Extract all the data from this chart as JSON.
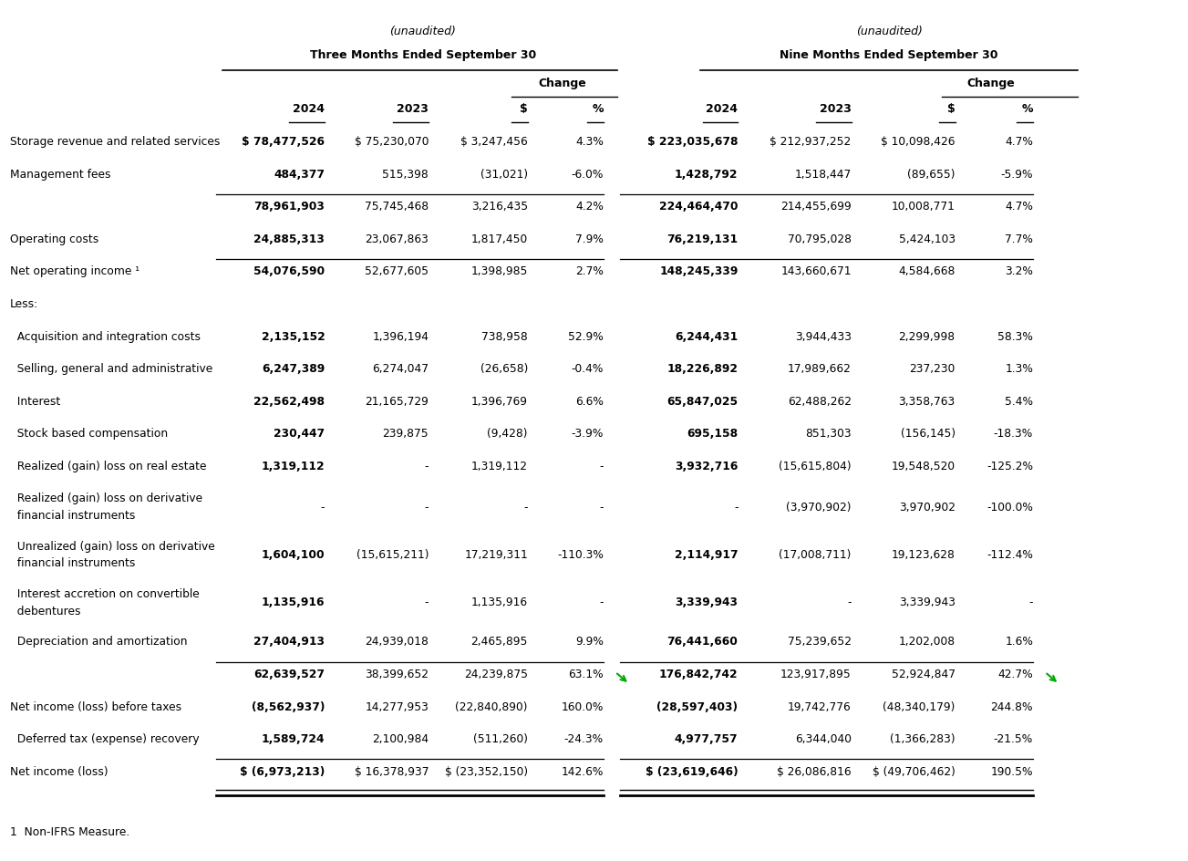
{
  "unaudited_label": "(unaudited)",
  "three_months_header": "Three Months Ended September 30",
  "nine_months_header": "Nine Months Ended September 30",
  "change_label": "Change",
  "footnote": "1  Non-IFRS Measure.",
  "rows": [
    {
      "label": "Storage revenue and related services",
      "indent": 0,
      "q2024": "$ 78,477,526",
      "q2023": "$ 75,230,070",
      "q_chg_s": "$ 3,247,456",
      "q_chg_pct": "4.3%",
      "n2024": "$ 223,035,678",
      "n2023": "$ 212,937,252",
      "n_chg_s": "$ 10,098,426",
      "n_chg_pct": "4.7%",
      "bold_vals": [
        true,
        false,
        false,
        false,
        true,
        false,
        false,
        false
      ],
      "bot_line": false,
      "double_line": false,
      "arrow_q": false,
      "arrow_n": false
    },
    {
      "label": "Management fees",
      "indent": 0,
      "q2024": "484,377",
      "q2023": "515,398",
      "q_chg_s": "(31,021)",
      "q_chg_pct": "-6.0%",
      "n2024": "1,428,792",
      "n2023": "1,518,447",
      "n_chg_s": "(89,655)",
      "n_chg_pct": "-5.9%",
      "bold_vals": [
        true,
        false,
        false,
        false,
        true,
        false,
        false,
        false
      ],
      "bot_line": true,
      "double_line": false,
      "arrow_q": false,
      "arrow_n": false
    },
    {
      "label": "",
      "indent": 0,
      "q2024": "78,961,903",
      "q2023": "75,745,468",
      "q_chg_s": "3,216,435",
      "q_chg_pct": "4.2%",
      "n2024": "224,464,470",
      "n2023": "214,455,699",
      "n_chg_s": "10,008,771",
      "n_chg_pct": "4.7%",
      "bold_vals": [
        true,
        false,
        false,
        false,
        true,
        false,
        false,
        false
      ],
      "bot_line": false,
      "double_line": false,
      "arrow_q": false,
      "arrow_n": false
    },
    {
      "label": "Operating costs",
      "indent": 0,
      "q2024": "24,885,313",
      "q2023": "23,067,863",
      "q_chg_s": "1,817,450",
      "q_chg_pct": "7.9%",
      "n2024": "76,219,131",
      "n2023": "70,795,028",
      "n_chg_s": "5,424,103",
      "n_chg_pct": "7.7%",
      "bold_vals": [
        true,
        false,
        false,
        false,
        true,
        false,
        false,
        false
      ],
      "bot_line": true,
      "double_line": false,
      "arrow_q": false,
      "arrow_n": false
    },
    {
      "label": "Net operating income ¹",
      "indent": 0,
      "q2024": "54,076,590",
      "q2023": "52,677,605",
      "q_chg_s": "1,398,985",
      "q_chg_pct": "2.7%",
      "n2024": "148,245,339",
      "n2023": "143,660,671",
      "n_chg_s": "4,584,668",
      "n_chg_pct": "3.2%",
      "bold_vals": [
        true,
        false,
        false,
        false,
        true,
        false,
        false,
        false
      ],
      "bot_line": false,
      "double_line": false,
      "arrow_q": false,
      "arrow_n": false
    },
    {
      "label": "Less:",
      "indent": 0,
      "q2024": "",
      "q2023": "",
      "q_chg_s": "",
      "q_chg_pct": "",
      "n2024": "",
      "n2023": "",
      "n_chg_s": "",
      "n_chg_pct": "",
      "bold_vals": [
        false,
        false,
        false,
        false,
        false,
        false,
        false,
        false
      ],
      "bot_line": false,
      "double_line": false,
      "arrow_q": false,
      "arrow_n": false
    },
    {
      "label": "  Acquisition and integration costs",
      "indent": 1,
      "q2024": "2,135,152",
      "q2023": "1,396,194",
      "q_chg_s": "738,958",
      "q_chg_pct": "52.9%",
      "n2024": "6,244,431",
      "n2023": "3,944,433",
      "n_chg_s": "2,299,998",
      "n_chg_pct": "58.3%",
      "bold_vals": [
        true,
        false,
        false,
        false,
        true,
        false,
        false,
        false
      ],
      "bot_line": false,
      "double_line": false,
      "arrow_q": false,
      "arrow_n": false
    },
    {
      "label": "  Selling, general and administrative",
      "indent": 1,
      "q2024": "6,247,389",
      "q2023": "6,274,047",
      "q_chg_s": "(26,658)",
      "q_chg_pct": "-0.4%",
      "n2024": "18,226,892",
      "n2023": "17,989,662",
      "n_chg_s": "237,230",
      "n_chg_pct": "1.3%",
      "bold_vals": [
        true,
        false,
        false,
        false,
        true,
        false,
        false,
        false
      ],
      "bot_line": false,
      "double_line": false,
      "arrow_q": false,
      "arrow_n": false
    },
    {
      "label": "  Interest",
      "indent": 1,
      "q2024": "22,562,498",
      "q2023": "21,165,729",
      "q_chg_s": "1,396,769",
      "q_chg_pct": "6.6%",
      "n2024": "65,847,025",
      "n2023": "62,488,262",
      "n_chg_s": "3,358,763",
      "n_chg_pct": "5.4%",
      "bold_vals": [
        true,
        false,
        false,
        false,
        true,
        false,
        false,
        false
      ],
      "bot_line": false,
      "double_line": false,
      "arrow_q": false,
      "arrow_n": false
    },
    {
      "label": "  Stock based compensation",
      "indent": 1,
      "q2024": "230,447",
      "q2023": "239,875",
      "q_chg_s": "(9,428)",
      "q_chg_pct": "-3.9%",
      "n2024": "695,158",
      "n2023": "851,303",
      "n_chg_s": "(156,145)",
      "n_chg_pct": "-18.3%",
      "bold_vals": [
        true,
        false,
        false,
        false,
        true,
        false,
        false,
        false
      ],
      "bot_line": false,
      "double_line": false,
      "arrow_q": false,
      "arrow_n": false
    },
    {
      "label": "  Realized (gain) loss on real estate",
      "indent": 1,
      "q2024": "1,319,112",
      "q2023": "-",
      "q_chg_s": "1,319,112",
      "q_chg_pct": "-",
      "n2024": "3,932,716",
      "n2023": "(15,615,804)",
      "n_chg_s": "19,548,520",
      "n_chg_pct": "-125.2%",
      "bold_vals": [
        true,
        false,
        false,
        false,
        true,
        false,
        false,
        false
      ],
      "bot_line": false,
      "double_line": false,
      "arrow_q": false,
      "arrow_n": false
    },
    {
      "label": "  Realized (gain) loss on derivative\n  financial instruments",
      "indent": 1,
      "q2024": "-",
      "q2023": "-",
      "q_chg_s": "-",
      "q_chg_pct": "-",
      "n2024": "-",
      "n2023": "(3,970,902)",
      "n_chg_s": "3,970,902",
      "n_chg_pct": "-100.0%",
      "bold_vals": [
        false,
        false,
        false,
        false,
        false,
        false,
        false,
        false
      ],
      "bot_line": false,
      "double_line": false,
      "arrow_q": false,
      "arrow_n": false
    },
    {
      "label": "  Unrealized (gain) loss on derivative\n  financial instruments",
      "indent": 1,
      "q2024": "1,604,100",
      "q2023": "(15,615,211)",
      "q_chg_s": "17,219,311",
      "q_chg_pct": "-110.3%",
      "n2024": "2,114,917",
      "n2023": "(17,008,711)",
      "n_chg_s": "19,123,628",
      "n_chg_pct": "-112.4%",
      "bold_vals": [
        true,
        false,
        false,
        false,
        true,
        false,
        false,
        false
      ],
      "bot_line": false,
      "double_line": false,
      "arrow_q": false,
      "arrow_n": false
    },
    {
      "label": "  Interest accretion on convertible\n  debentures",
      "indent": 1,
      "q2024": "1,135,916",
      "q2023": "-",
      "q_chg_s": "1,135,916",
      "q_chg_pct": "-",
      "n2024": "3,339,943",
      "n2023": "-",
      "n_chg_s": "3,339,943",
      "n_chg_pct": "-",
      "bold_vals": [
        true,
        false,
        false,
        false,
        true,
        false,
        false,
        false
      ],
      "bot_line": false,
      "double_line": false,
      "arrow_q": false,
      "arrow_n": false
    },
    {
      "label": "  Depreciation and amortization",
      "indent": 1,
      "q2024": "27,404,913",
      "q2023": "24,939,018",
      "q_chg_s": "2,465,895",
      "q_chg_pct": "9.9%",
      "n2024": "76,441,660",
      "n2023": "75,239,652",
      "n_chg_s": "1,202,008",
      "n_chg_pct": "1.6%",
      "bold_vals": [
        true,
        false,
        false,
        false,
        true,
        false,
        false,
        false
      ],
      "bot_line": true,
      "double_line": false,
      "arrow_q": false,
      "arrow_n": false
    },
    {
      "label": "",
      "indent": 0,
      "q2024": "62,639,527",
      "q2023": "38,399,652",
      "q_chg_s": "24,239,875",
      "q_chg_pct": "63.1%",
      "n2024": "176,842,742",
      "n2023": "123,917,895",
      "n_chg_s": "52,924,847",
      "n_chg_pct": "42.7%",
      "bold_vals": [
        true,
        false,
        false,
        false,
        true,
        false,
        false,
        false
      ],
      "bot_line": false,
      "double_line": false,
      "arrow_q": true,
      "arrow_n": true
    },
    {
      "label": "Net income (loss) before taxes",
      "indent": 0,
      "q2024": "(8,562,937)",
      "q2023": "14,277,953",
      "q_chg_s": "(22,840,890)",
      "q_chg_pct": "160.0%",
      "n2024": "(28,597,403)",
      "n2023": "19,742,776",
      "n_chg_s": "(48,340,179)",
      "n_chg_pct": "244.8%",
      "bold_vals": [
        true,
        false,
        false,
        false,
        true,
        false,
        false,
        false
      ],
      "bot_line": false,
      "double_line": false,
      "arrow_q": false,
      "arrow_n": false
    },
    {
      "label": "  Deferred tax (expense) recovery",
      "indent": 1,
      "q2024": "1,589,724",
      "q2023": "2,100,984",
      "q_chg_s": "(511,260)",
      "q_chg_pct": "-24.3%",
      "n2024": "4,977,757",
      "n2023": "6,344,040",
      "n_chg_s": "(1,366,283)",
      "n_chg_pct": "-21.5%",
      "bold_vals": [
        true,
        false,
        false,
        false,
        true,
        false,
        false,
        false
      ],
      "bot_line": true,
      "double_line": false,
      "arrow_q": false,
      "arrow_n": false
    },
    {
      "label": "Net income (loss)",
      "indent": 0,
      "q2024": "$ (6,973,213)",
      "q2023": "$ 16,378,937",
      "q_chg_s": "$ (23,352,150)",
      "q_chg_pct": "142.6%",
      "n2024": "$ (23,619,646)",
      "n2023": "$ 26,086,816",
      "n_chg_s": "$ (49,706,462)",
      "n_chg_pct": "190.5%",
      "bold_vals": [
        true,
        false,
        false,
        false,
        true,
        false,
        false,
        false
      ],
      "bot_line": true,
      "double_line": true,
      "arrow_q": false,
      "arrow_n": false
    }
  ],
  "background_color": "#ffffff",
  "font_color": "#000000"
}
